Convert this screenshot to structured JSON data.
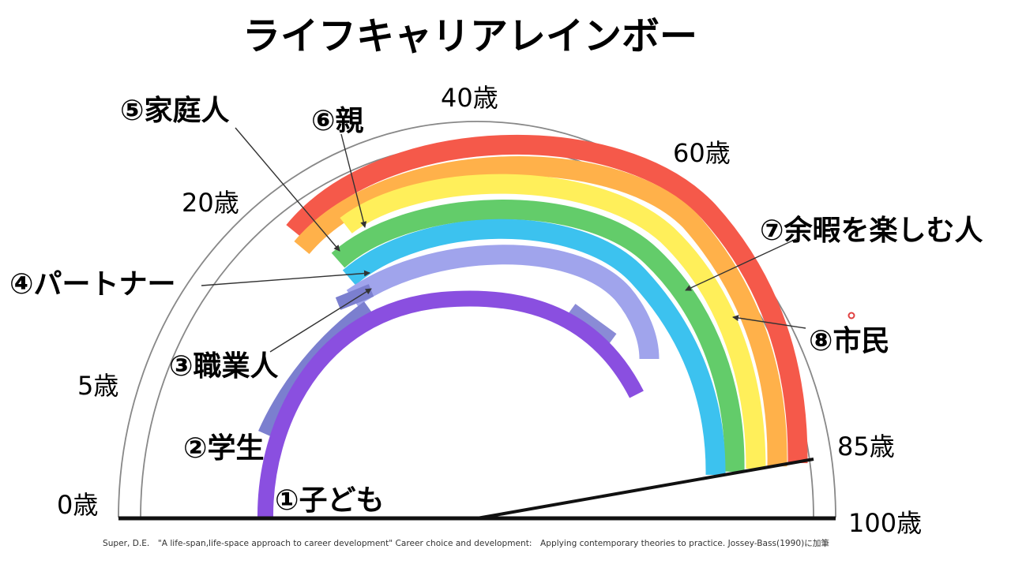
{
  "title": "ライフキャリアレインボー",
  "ages": [
    "0歳",
    "5歳",
    "20歳",
    "40歳",
    "60歳",
    "85歳",
    "100歳"
  ],
  "roles": [
    "①子ども",
    "②学生",
    "③職業人",
    "④パートナー",
    "⑤家庭人",
    "⑥親",
    "⑦余暇を楽しむ人",
    "⑧市民"
  ],
  "citation": "Super, D.E.　\"A life-span,life-space approach to career development\" Career choice and development:　Applying contemporary theories to practice. Jossey-Bass(1990)に加筆",
  "colors": {
    "child": "#8a4fe0",
    "student": "#7b7fcf",
    "worker_segments": "#8a8bd6",
    "partner_band": "#a0a4ec",
    "spouse": "#3cc2ef",
    "homemaker": "#63cc6a",
    "parent": "#ffef5a",
    "leisure": "#ffb14a",
    "citizen": "#f5594a"
  }
}
